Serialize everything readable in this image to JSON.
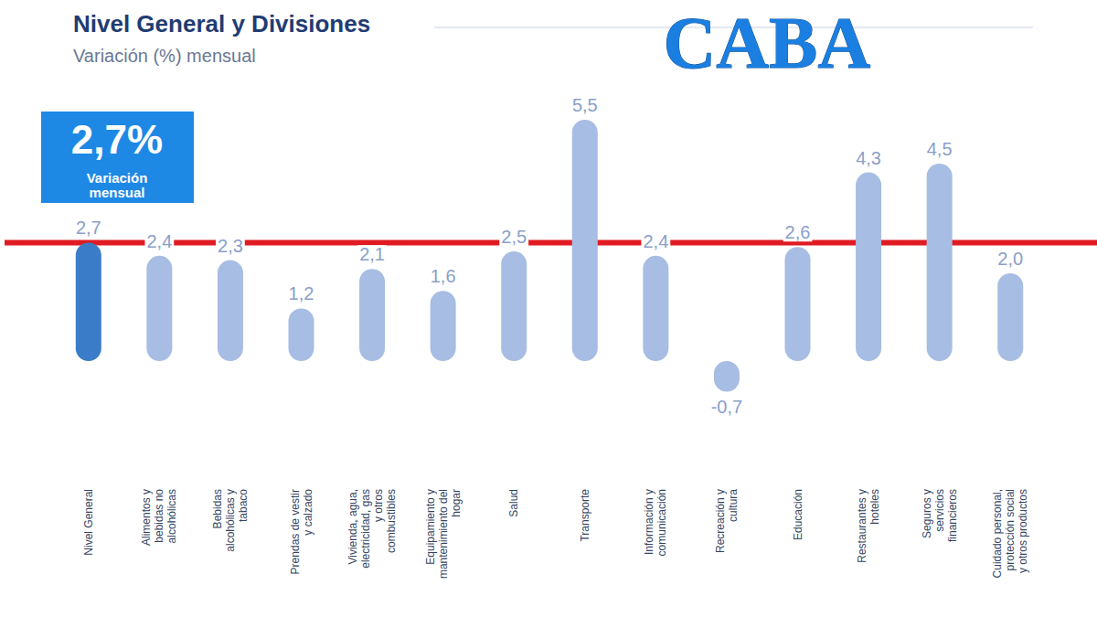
{
  "chart_data": {
    "type": "bar",
    "title": "Nivel General y Divisiones",
    "subtitle": "Variación (%) mensual",
    "categories": [
      "Nivel General",
      "Alimentos y bebidas no alcohólicas",
      "Bebidas alcohólicas y tabaco",
      "Prendas de vestir y calzado",
      "Vivienda, agua, electricidad, gas y otros combustibles",
      "Equipamiento y mantenimiento del hogar",
      "Salud",
      "Transporte",
      "Información y comunicación",
      "Recreación y cultura",
      "Educación",
      "Restaurantes y hoteles",
      "Seguros y servicios financieros",
      "Cuidado personal, protección social y otros productos"
    ],
    "values": [
      2.7,
      2.4,
      2.3,
      1.2,
      2.1,
      1.6,
      2.5,
      5.5,
      2.4,
      -0.7,
      2.6,
      4.3,
      4.5,
      2.0
    ],
    "value_labels": [
      "2,7",
      "2,4",
      "2,3",
      "1,2",
      "2,1",
      "1,6",
      "2,5",
      "5,5",
      "2,4",
      "-0,7",
      "2,6",
      "4,3",
      "4,5",
      "2,0"
    ],
    "colors": [
      "#3b7cc8",
      "#a7bde3",
      "#a7bde3",
      "#a7bde3",
      "#a7bde3",
      "#a7bde3",
      "#a7bde3",
      "#a7bde3",
      "#a7bde3",
      "#a7bde3",
      "#a7bde3",
      "#a7bde3",
      "#a7bde3",
      "#a7bde3"
    ],
    "ylim": [
      -1,
      6
    ],
    "grid": false,
    "data_labels": true,
    "tick_labels": "x",
    "annotations": [
      {
        "text": "CABA",
        "color": "#1a7fe0"
      },
      {
        "text": "2,7%",
        "subtext": "Variación mensual",
        "color": "#1e88e5"
      }
    ],
    "reference_line": {
      "y": 2.7,
      "color": "#e01b22"
    }
  }
}
